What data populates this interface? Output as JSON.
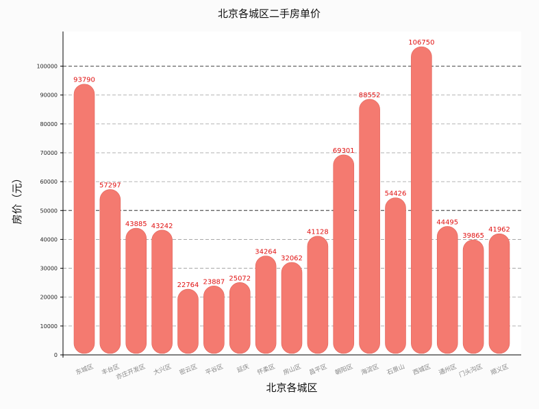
{
  "chart_data": {
    "type": "bar",
    "title": "北京各城区二手房单价",
    "xlabel": "北京各城区",
    "ylabel": "房价（元）",
    "categories": [
      "东城区",
      "丰台区",
      "亦庄开发区",
      "大兴区",
      "密云区",
      "平谷区",
      "延庆",
      "怀柔区",
      "房山区",
      "昌平区",
      "朝阳区",
      "海淀区",
      "石景山",
      "西城区",
      "通州区",
      "门头沟区",
      "顺义区"
    ],
    "values": [
      93790,
      57297,
      43885,
      43242,
      22764,
      23887,
      25072,
      34264,
      32062,
      41128,
      69301,
      88552,
      54426,
      106750,
      44495,
      39865,
      41962
    ],
    "ylim": [
      0,
      112000
    ],
    "yticks": [
      0,
      10000,
      20000,
      30000,
      40000,
      50000,
      60000,
      70000,
      80000,
      90000,
      100000
    ],
    "grid": "horizontal dashed",
    "bar_color": "#f47a70",
    "label_color": "#e01010",
    "legend": "none"
  }
}
